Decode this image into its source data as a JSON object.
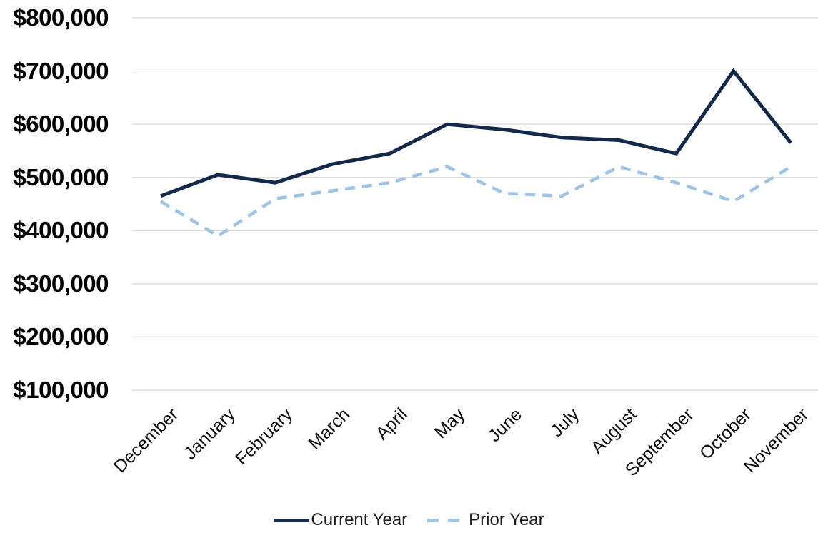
{
  "chart_data": {
    "type": "line",
    "title": "",
    "xlabel": "",
    "ylabel": "",
    "categories": [
      "December",
      "January",
      "February",
      "March",
      "April",
      "May",
      "June",
      "July",
      "August",
      "September",
      "October",
      "November"
    ],
    "series": [
      {
        "name": "Current Year",
        "style": "solid",
        "color": "#12294b",
        "values": [
          465000,
          505000,
          490000,
          525000,
          545000,
          600000,
          590000,
          575000,
          570000,
          545000,
          700000,
          565000
        ]
      },
      {
        "name": "Prior Year",
        "style": "dashed",
        "color": "#9dc3e6",
        "values": [
          455000,
          390000,
          460000,
          475000,
          490000,
          520000,
          470000,
          465000,
          520000,
          490000,
          455000,
          520000
        ]
      }
    ],
    "ylim": [
      100000,
      800000
    ],
    "ytick_values": [
      800000,
      700000,
      600000,
      500000,
      400000,
      300000,
      200000,
      100000
    ],
    "ytick_labels": [
      "$800,000",
      "$700,000",
      "$600,000",
      "$500,000",
      "$400,000",
      "$300,000",
      "$200,000",
      "$100,000"
    ],
    "grid": "horizontal-only",
    "gridline_color": "#dedede",
    "axis_text_color": "#000000",
    "legend_position": "bottom-center"
  }
}
